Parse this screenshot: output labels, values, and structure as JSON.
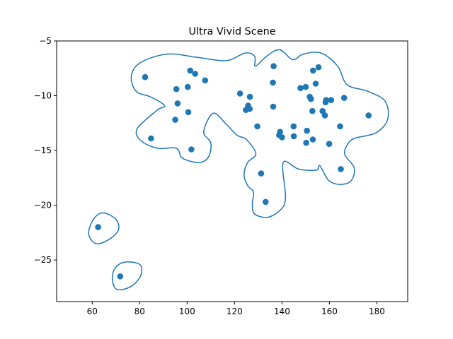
{
  "chart_data": {
    "type": "scatter",
    "title": "Ultra Vivid Scene",
    "xlabel": "",
    "ylabel": "",
    "xlim": [
      45,
      193
    ],
    "ylim": [
      -28.8,
      -5
    ],
    "xticks": [
      60,
      80,
      100,
      120,
      140,
      160,
      180
    ],
    "yticks": [
      -25,
      -20,
      -15,
      -10,
      -5
    ],
    "grid": false,
    "colors": {
      "points": "#1f77b4",
      "contour": "#1f77b4",
      "axes": "#000000"
    },
    "points": [
      [
        62.5,
        -22.0
      ],
      [
        71.8,
        -26.5
      ],
      [
        82.3,
        -8.3
      ],
      [
        84.8,
        -13.9
      ],
      [
        95.0,
        -12.2
      ],
      [
        95.5,
        -9.4
      ],
      [
        96.0,
        -10.7
      ],
      [
        100.3,
        -9.2
      ],
      [
        100.5,
        -11.5
      ],
      [
        101.3,
        -7.7
      ],
      [
        101.8,
        -14.9
      ],
      [
        103.4,
        -8.0
      ],
      [
        107.6,
        -8.6
      ],
      [
        122.3,
        -9.8
      ],
      [
        124.8,
        -11.3
      ],
      [
        125.7,
        -10.9
      ],
      [
        126.5,
        -10.1
      ],
      [
        126.4,
        -11.2
      ],
      [
        129.6,
        -12.8
      ],
      [
        131.2,
        -17.1
      ],
      [
        133.1,
        -19.7
      ],
      [
        136.2,
        -8.8
      ],
      [
        136.5,
        -7.3
      ],
      [
        136.3,
        -11.0
      ],
      [
        138.8,
        -13.6
      ],
      [
        139.2,
        -13.3
      ],
      [
        140.0,
        -13.8
      ],
      [
        144.9,
        -12.8
      ],
      [
        145.0,
        -13.7
      ],
      [
        147.8,
        -9.3
      ],
      [
        150.0,
        -9.2
      ],
      [
        150.2,
        -14.3
      ],
      [
        150.5,
        -13.2
      ],
      [
        151.7,
        -10.1
      ],
      [
        152.2,
        -10.3
      ],
      [
        152.8,
        -11.4
      ],
      [
        153.0,
        -14.0
      ],
      [
        153.1,
        -7.7
      ],
      [
        154.2,
        -8.9
      ],
      [
        155.4,
        -7.4
      ],
      [
        157.1,
        -11.4
      ],
      [
        158.1,
        -11.8
      ],
      [
        158.4,
        -10.6
      ],
      [
        158.6,
        -10.4
      ],
      [
        159.9,
        -14.4
      ],
      [
        160.7,
        -10.4
      ],
      [
        164.5,
        -12.8
      ],
      [
        164.8,
        -16.7
      ],
      [
        166.2,
        -10.2
      ],
      [
        176.5,
        -11.8
      ]
    ],
    "contours": [
      [
        [
          80.2,
          -7.0
        ],
        [
          91.5,
          -6.2
        ],
        [
          104.5,
          -6.5
        ],
        [
          116.5,
          -6.8
        ],
        [
          124.5,
          -6.1
        ],
        [
          128.5,
          -6.4
        ],
        [
          128.8,
          -7.3
        ],
        [
          133.5,
          -6.4
        ],
        [
          139.0,
          -5.8
        ],
        [
          144.5,
          -6.7
        ],
        [
          149.0,
          -6.2
        ],
        [
          156.5,
          -6.1
        ],
        [
          163.5,
          -7.3
        ],
        [
          167.5,
          -9.0
        ],
        [
          176.2,
          -9.6
        ],
        [
          183.5,
          -10.5
        ],
        [
          184.5,
          -12.2
        ],
        [
          179.5,
          -13.4
        ],
        [
          170.5,
          -13.9
        ],
        [
          167.5,
          -14.5
        ],
        [
          166.5,
          -15.4
        ],
        [
          170.5,
          -16.6
        ],
        [
          169.0,
          -17.8
        ],
        [
          164.0,
          -18.1
        ],
        [
          159.5,
          -17.7
        ],
        [
          156.0,
          -16.4
        ],
        [
          154.5,
          -16.8
        ],
        [
          147.0,
          -16.7
        ],
        [
          140.5,
          -16.1
        ],
        [
          141.5,
          -19.3
        ],
        [
          139.5,
          -20.4
        ],
        [
          134.0,
          -21.1
        ],
        [
          128.5,
          -20.8
        ],
        [
          127.5,
          -19.9
        ],
        [
          128.0,
          -18.8
        ],
        [
          125.5,
          -18.2
        ],
        [
          124.0,
          -17.2
        ],
        [
          125.5,
          -16.1
        ],
        [
          129.0,
          -15.3
        ],
        [
          125.0,
          -14.0
        ],
        [
          121.0,
          -13.6
        ],
        [
          116.5,
          -12.6
        ],
        [
          111.0,
          -11.6
        ],
        [
          107.0,
          -13.3
        ],
        [
          110.0,
          -14.3
        ],
        [
          109.0,
          -15.6
        ],
        [
          105.0,
          -16.1
        ],
        [
          98.0,
          -15.7
        ],
        [
          95.5,
          -14.8
        ],
        [
          87.5,
          -14.8
        ],
        [
          80.5,
          -14.1
        ],
        [
          79.0,
          -13.0
        ],
        [
          87.5,
          -11.3
        ],
        [
          90.5,
          -10.9
        ],
        [
          84.5,
          -10.1
        ],
        [
          78.5,
          -9.6
        ],
        [
          76.5,
          -8.2
        ],
        [
          80.2,
          -7.0
        ]
      ],
      [
        [
          64.5,
          -20.7
        ],
        [
          70.0,
          -21.3
        ],
        [
          71.0,
          -22.3
        ],
        [
          66.5,
          -23.2
        ],
        [
          61.5,
          -23.5
        ],
        [
          58.5,
          -22.6
        ],
        [
          60.5,
          -21.3
        ],
        [
          64.5,
          -20.7
        ]
      ],
      [
        [
          73.5,
          -25.2
        ],
        [
          80.0,
          -25.4
        ],
        [
          80.5,
          -26.4
        ],
        [
          76.5,
          -27.4
        ],
        [
          70.5,
          -27.7
        ],
        [
          68.5,
          -26.8
        ],
        [
          69.5,
          -25.8
        ],
        [
          73.5,
          -25.2
        ]
      ]
    ]
  }
}
